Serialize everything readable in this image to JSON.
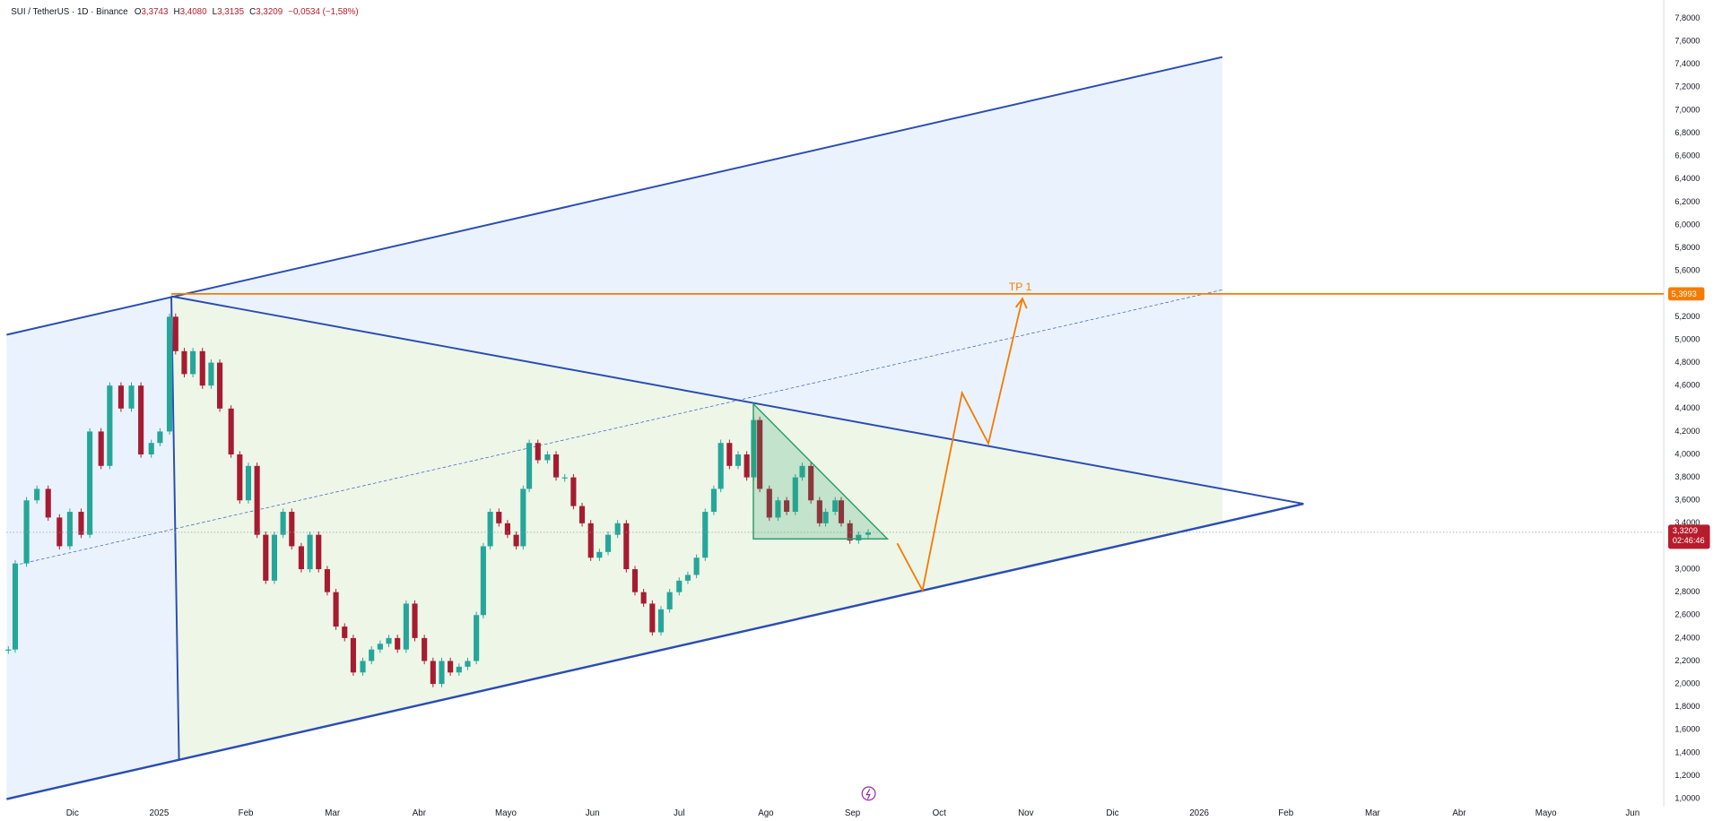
{
  "chart_data": {
    "type": "candlestick",
    "title": "SUI / TetherUS · 1D · Binance",
    "header_values": [
      {
        "key": "O",
        "text": "3,3743"
      },
      {
        "key": "H",
        "text": "3,4080"
      },
      {
        "key": "L",
        "text": "3,3135"
      },
      {
        "key": "C",
        "text": "3,3209"
      },
      {
        "key": "",
        "text": "−0,0534 (−1,58%)"
      }
    ],
    "up_color": "#26a69a",
    "down_color": "#a51c30",
    "x": [
      -0.74,
      -0.66,
      -0.53,
      -0.41,
      -0.28,
      -0.15,
      -0.03,
      0.1,
      0.2,
      0.33,
      0.43,
      0.56,
      0.68,
      0.79,
      0.91,
      1.01,
      1.12,
      1.19,
      1.29,
      1.39,
      1.5,
      1.6,
      1.7,
      1.83,
      1.93,
      2.03,
      2.13,
      2.23,
      2.33,
      2.43,
      2.53,
      2.64,
      2.74,
      2.84,
      2.94,
      3.04,
      3.14,
      3.24,
      3.35,
      3.45,
      3.55,
      3.65,
      3.75,
      3.85,
      3.95,
      4.06,
      4.16,
      4.26,
      4.36,
      4.46,
      4.56,
      4.66,
      4.74,
      4.82,
      4.92,
      5.02,
      5.12,
      5.2,
      5.27,
      5.37,
      5.48,
      5.58,
      5.68,
      5.78,
      5.88,
      5.98,
      6.08,
      6.18,
      6.29,
      6.39,
      6.49,
      6.59,
      6.69,
      6.79,
      6.89,
      7.0,
      7.1,
      7.2,
      7.3,
      7.4,
      7.48,
      7.58,
      7.68,
      7.78,
      7.86,
      7.93,
      8.04,
      8.14,
      8.24,
      8.34,
      8.42,
      8.52,
      8.62,
      8.69,
      8.8,
      8.87,
      8.97,
      9.07,
      9.18
    ],
    "values": [
      2.3,
      3.05,
      3.6,
      3.7,
      3.45,
      3.2,
      3.5,
      3.3,
      4.2,
      3.9,
      4.6,
      4.4,
      4.6,
      4.0,
      4.1,
      4.2,
      5.2,
      4.9,
      4.7,
      4.9,
      4.6,
      4.8,
      4.4,
      4.0,
      3.6,
      3.9,
      3.3,
      2.9,
      3.3,
      3.5,
      3.2,
      3.0,
      3.3,
      3.0,
      2.8,
      2.5,
      2.4,
      2.1,
      2.2,
      2.3,
      2.35,
      2.4,
      2.3,
      2.7,
      2.4,
      2.2,
      2.0,
      2.2,
      2.1,
      2.15,
      2.2,
      2.6,
      3.2,
      3.5,
      3.4,
      3.3,
      3.2,
      3.7,
      4.1,
      3.95,
      4.0,
      3.8,
      3.8,
      3.55,
      3.4,
      3.1,
      3.15,
      3.3,
      3.4,
      3.0,
      2.8,
      2.7,
      2.45,
      2.65,
      2.8,
      2.9,
      2.95,
      3.1,
      3.5,
      3.7,
      4.1,
      3.9,
      4.0,
      3.8,
      4.3,
      3.7,
      3.45,
      3.6,
      3.5,
      3.8,
      3.9,
      3.6,
      3.4,
      3.5,
      3.6,
      3.4,
      3.25,
      3.3,
      3.32
    ],
    "xlim": [
      -0.76,
      18.36
    ],
    "xticks": [
      {
        "value": 0,
        "label": "Dic"
      },
      {
        "value": 1,
        "label": "2025"
      },
      {
        "value": 2,
        "label": "Feb"
      },
      {
        "value": 3,
        "label": "Mar"
      },
      {
        "value": 4,
        "label": "Abr"
      },
      {
        "value": 5,
        "label": "Mayo"
      },
      {
        "value": 6,
        "label": "Jun"
      },
      {
        "value": 7,
        "label": "Jul"
      },
      {
        "value": 8,
        "label": "Ago"
      },
      {
        "value": 9,
        "label": "Sep"
      },
      {
        "value": 10,
        "label": "Oct"
      },
      {
        "value": 11,
        "label": "Nov"
      },
      {
        "value": 12,
        "label": "Dic"
      },
      {
        "value": 13,
        "label": "2026"
      },
      {
        "value": 14,
        "label": "Feb"
      },
      {
        "value": 15,
        "label": "Mar"
      },
      {
        "value": 16,
        "label": "Abr"
      },
      {
        "value": 17,
        "label": "Mayo"
      },
      {
        "value": 18,
        "label": "Jun"
      }
    ],
    "ylim": [
      0.93,
      7.96
    ],
    "yticks": [
      {
        "value": 1.0,
        "label": "1,0000"
      },
      {
        "value": 1.2,
        "label": "1,2000"
      },
      {
        "value": 1.4,
        "label": "1,4000"
      },
      {
        "value": 1.6,
        "label": "1,6000"
      },
      {
        "value": 1.8,
        "label": "1,8000"
      },
      {
        "value": 2.0,
        "label": "2,0000"
      },
      {
        "value": 2.2,
        "label": "2,2000"
      },
      {
        "value": 2.4,
        "label": "2,4000"
      },
      {
        "value": 2.6,
        "label": "2,6000"
      },
      {
        "value": 2.8,
        "label": "2,8000"
      },
      {
        "value": 3.0,
        "label": "3,0000"
      },
      {
        "value": 3.4,
        "label": "3,4000"
      },
      {
        "value": 3.6,
        "label": "3,6000"
      },
      {
        "value": 3.8,
        "label": "3,8000"
      },
      {
        "value": 4.0,
        "label": "4,0000"
      },
      {
        "value": 4.2,
        "label": "4,2000"
      },
      {
        "value": 4.4,
        "label": "4,4000"
      },
      {
        "value": 4.6,
        "label": "4,6000"
      },
      {
        "value": 4.8,
        "label": "4,8000"
      },
      {
        "value": 5.0,
        "label": "5,0000"
      },
      {
        "value": 5.2,
        "label": "5,2000"
      },
      {
        "value": 5.6,
        "label": "5,6000"
      },
      {
        "value": 5.8,
        "label": "5,8000"
      },
      {
        "value": 6.0,
        "label": "6,0000"
      },
      {
        "value": 6.2,
        "label": "6,2000"
      },
      {
        "value": 6.4,
        "label": "6,4000"
      },
      {
        "value": 6.6,
        "label": "6,6000"
      },
      {
        "value": 6.8,
        "label": "6,8000"
      },
      {
        "value": 7.0,
        "label": "7,0000"
      },
      {
        "value": 7.2,
        "label": "7,2000"
      },
      {
        "value": 7.4,
        "label": "7,4000"
      },
      {
        "value": 7.6,
        "label": "7,6000"
      },
      {
        "value": 7.8,
        "label": "7,8000"
      }
    ],
    "grid": false,
    "price_lines": [
      {
        "value": 5.3993,
        "label": "5,3993",
        "color": "#f57c00"
      },
      {
        "value": 3.3209,
        "label": "3,3209",
        "countdown": "02:46:46",
        "color": "#b71c2c"
      }
    ],
    "annotation": "TP 1"
  }
}
